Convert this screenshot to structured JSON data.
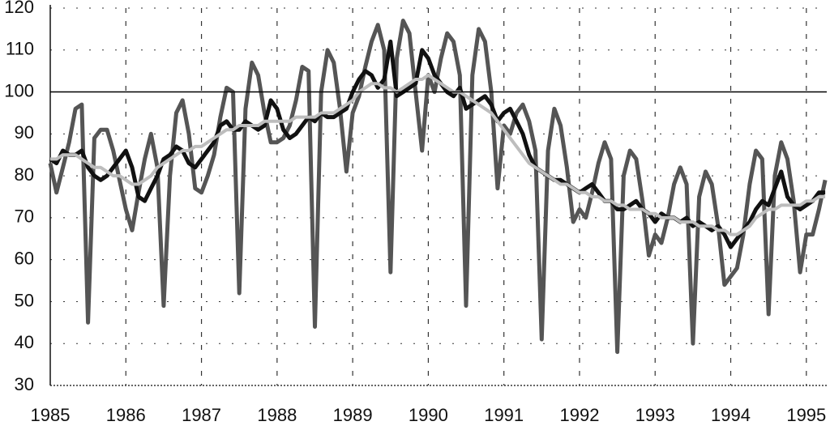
{
  "chart_data": {
    "type": "line",
    "x": [
      1985,
      1985.083,
      1985.167,
      1985.25,
      1985.333,
      1985.417,
      1985.5,
      1985.583,
      1985.667,
      1985.75,
      1985.833,
      1985.917,
      1986,
      1986.083,
      1986.167,
      1986.25,
      1986.333,
      1986.417,
      1986.5,
      1986.583,
      1986.667,
      1986.75,
      1986.833,
      1986.917,
      1987,
      1987.083,
      1987.167,
      1987.25,
      1987.333,
      1987.417,
      1987.5,
      1987.583,
      1987.667,
      1987.75,
      1987.833,
      1987.917,
      1988,
      1988.083,
      1988.167,
      1988.25,
      1988.333,
      1988.417,
      1988.5,
      1988.583,
      1988.667,
      1988.75,
      1988.833,
      1988.917,
      1989,
      1989.083,
      1989.167,
      1989.25,
      1989.333,
      1989.417,
      1989.5,
      1989.583,
      1989.667,
      1989.75,
      1989.833,
      1989.917,
      1990,
      1990.083,
      1990.167,
      1990.25,
      1990.333,
      1990.417,
      1990.5,
      1990.583,
      1990.667,
      1990.75,
      1990.833,
      1990.917,
      1991,
      1991.083,
      1991.167,
      1991.25,
      1991.333,
      1991.417,
      1991.5,
      1991.583,
      1991.667,
      1991.75,
      1991.833,
      1991.917,
      1992,
      1992.083,
      1992.167,
      1992.25,
      1992.333,
      1992.417,
      1992.5,
      1992.583,
      1992.667,
      1992.75,
      1992.833,
      1992.917,
      1993,
      1993.083,
      1993.167,
      1993.25,
      1993.333,
      1993.417,
      1993.5,
      1993.583,
      1993.667,
      1993.75,
      1993.833,
      1993.917,
      1994,
      1994.083,
      1994.167,
      1994.25,
      1994.333,
      1994.417,
      1994.5,
      1994.583,
      1994.667,
      1994.75,
      1994.833,
      1994.917,
      1995,
      1995.083,
      1995.167,
      1995.25
    ],
    "series": [
      {
        "color": "#555555",
        "width": 5,
        "values": [
          83,
          76,
          82,
          88,
          96,
          97,
          45,
          89,
          91,
          91,
          86,
          79,
          72,
          67,
          76,
          84,
          90,
          82,
          49,
          80,
          95,
          98,
          90,
          77,
          76,
          80,
          85,
          94,
          101,
          100,
          52,
          96,
          107,
          104,
          95,
          88,
          88,
          89,
          92,
          98,
          106,
          105,
          44,
          100,
          110,
          107,
          96,
          81,
          95,
          99,
          106,
          112,
          116,
          110,
          57,
          108,
          117,
          114,
          100,
          86,
          104,
          100,
          108,
          114,
          112,
          104,
          49,
          104,
          115,
          112,
          100,
          77,
          92,
          90,
          95,
          97,
          93,
          86,
          41,
          86,
          96,
          92,
          82,
          69,
          72,
          70,
          76,
          83,
          88,
          84,
          38,
          80,
          86,
          84,
          74,
          61,
          66,
          64,
          70,
          78,
          82,
          78,
          40,
          75,
          81,
          78,
          68,
          54,
          56,
          58,
          66,
          78,
          86,
          84,
          47,
          80,
          88,
          84,
          74,
          57,
          66,
          66,
          72,
          79
        ]
      },
      {
        "color": "#111111",
        "width": 5,
        "values": [
          84,
          83,
          86,
          85,
          85,
          86,
          82,
          80,
          79,
          80,
          82,
          84,
          86,
          82,
          75,
          74,
          77,
          80,
          84,
          85,
          87,
          86,
          83,
          82,
          84,
          86,
          88,
          92,
          93,
          91,
          91,
          93,
          92,
          91,
          92,
          98,
          96,
          91,
          89,
          90,
          92,
          94,
          93,
          95,
          94,
          94,
          95,
          96,
          100,
          103,
          105,
          104,
          101,
          103,
          112,
          99,
          100,
          101,
          102,
          110,
          108,
          104,
          102,
          100,
          99,
          101,
          96,
          97,
          98,
          99,
          97,
          93,
          95,
          96,
          93,
          90,
          85,
          82,
          81,
          80,
          79,
          79,
          78,
          77,
          76,
          77,
          78,
          76,
          74,
          74,
          72,
          72,
          73,
          74,
          72,
          71,
          69,
          71,
          70,
          70,
          69,
          70,
          68,
          69,
          68,
          67,
          68,
          66,
          63,
          65,
          67,
          69,
          72,
          74,
          73,
          77,
          81,
          75,
          73,
          72,
          73,
          74,
          76,
          76
        ]
      },
      {
        "color": "#bdbdbd",
        "width": 4,
        "values": [
          84,
          84,
          85,
          85,
          85,
          84,
          83,
          82,
          82,
          81,
          80,
          80,
          79,
          78,
          78,
          79,
          80,
          82,
          83,
          84,
          85,
          86,
          86,
          87,
          87,
          88,
          89,
          90,
          91,
          91,
          92,
          92,
          92,
          92,
          93,
          93,
          93,
          93,
          93,
          94,
          94,
          94,
          94,
          95,
          95,
          95,
          96,
          97,
          98,
          100,
          101,
          102,
          102,
          101,
          101,
          100,
          101,
          102,
          103,
          103,
          104,
          103,
          102,
          101,
          100,
          100,
          99,
          98,
          97,
          96,
          95,
          93,
          91,
          89,
          87,
          85,
          83,
          82,
          81,
          80,
          79,
          78,
          78,
          77,
          76,
          76,
          75,
          75,
          74,
          74,
          73,
          73,
          72,
          72,
          72,
          71,
          71,
          70,
          70,
          70,
          69,
          69,
          69,
          68,
          68,
          68,
          67,
          67,
          66,
          66,
          67,
          68,
          70,
          71,
          72,
          72,
          73,
          73,
          73,
          73,
          74,
          74,
          75,
          75
        ]
      }
    ],
    "xlim": [
      1985,
      1995.27
    ],
    "xticks": [
      1985,
      1986,
      1987,
      1988,
      1989,
      1990,
      1991,
      1992,
      1993,
      1994,
      1995
    ],
    "ylim": [
      30,
      120
    ],
    "yticks": [
      30,
      40,
      50,
      60,
      70,
      80,
      90,
      100,
      110,
      120
    ],
    "reference_line": 100,
    "grid": true
  }
}
